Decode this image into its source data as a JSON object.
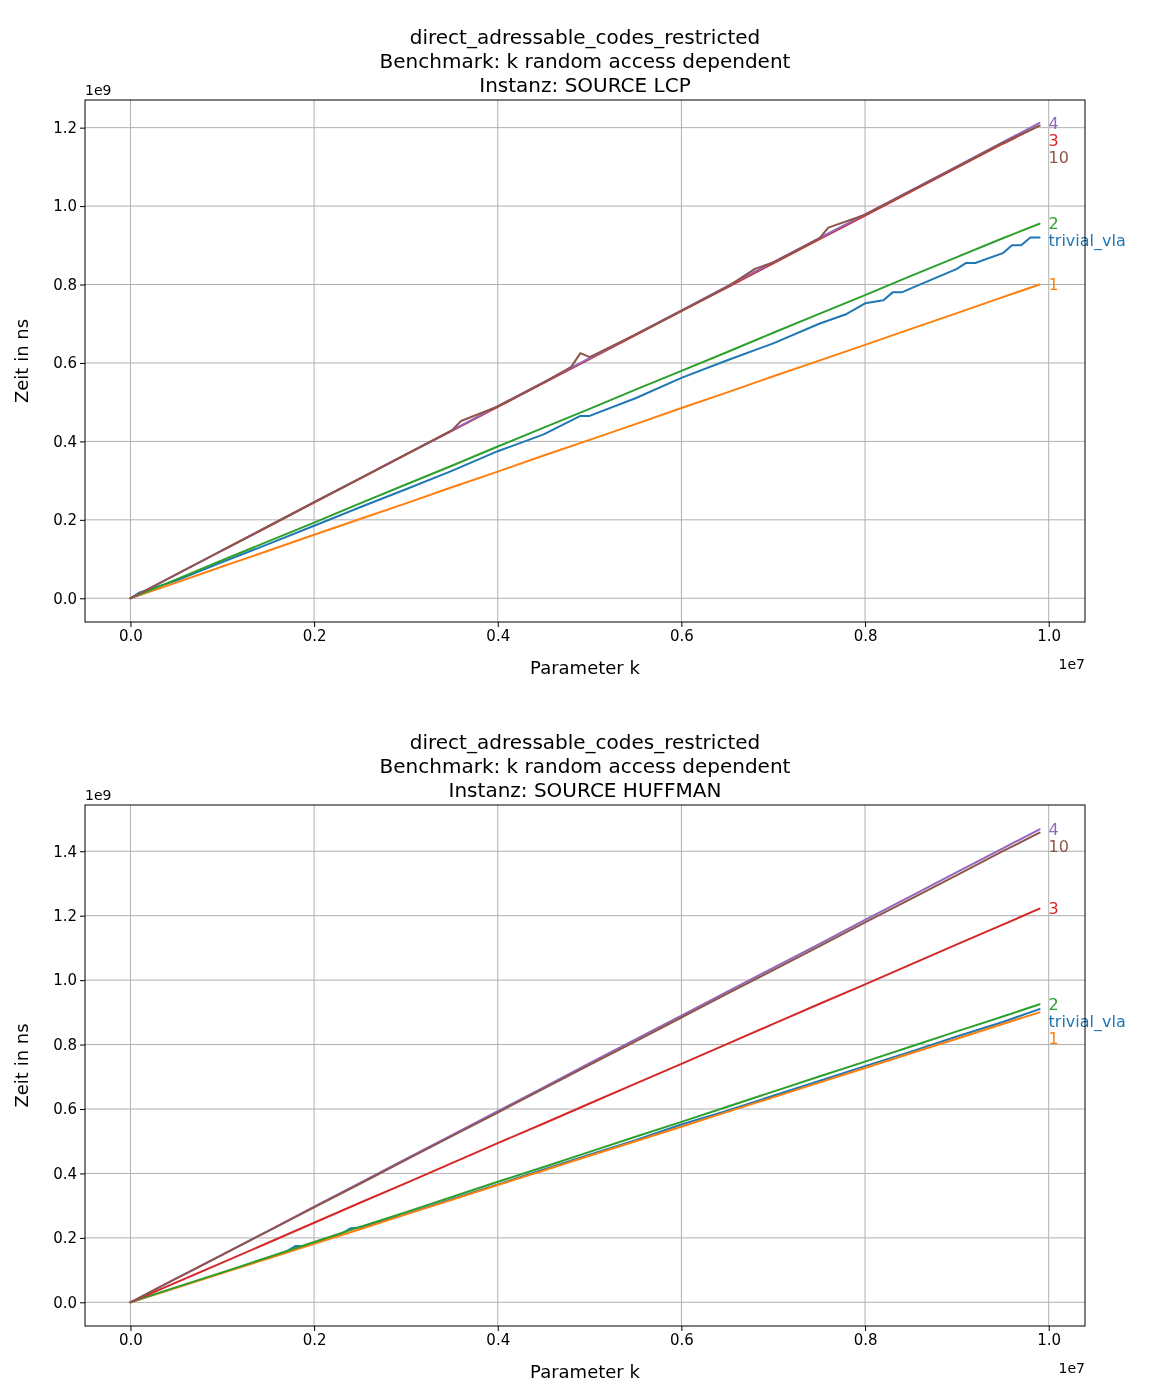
{
  "chart_data": [
    {
      "type": "line",
      "title": "direct_adressable_codes_restricted\nBenchmark: k random access dependent\nInstanz: SOURCE LCP",
      "xlabel": "Parameter k",
      "ylabel": "Zeit in ns",
      "annotations": [
        "1e9",
        "1e7"
      ],
      "grid": true,
      "xlim": [
        -0.0495,
        1.0395
      ],
      "ylim": [
        -0.0605,
        1.2705
      ],
      "xticks": [
        {
          "value": 0,
          "label": "0.0"
        },
        {
          "value": 0.2,
          "label": "0.2"
        },
        {
          "value": 0.4,
          "label": "0.4"
        },
        {
          "value": 0.6,
          "label": "0.6"
        },
        {
          "value": 0.8,
          "label": "0.8"
        },
        {
          "value": 1,
          "label": "1.0"
        }
      ],
      "yticks": [
        {
          "value": 0,
          "label": "0.0"
        },
        {
          "value": 0.2,
          "label": "0.2"
        },
        {
          "value": 0.4,
          "label": "0.4"
        },
        {
          "value": 0.6,
          "label": "0.6"
        },
        {
          "value": 0.8,
          "label": "0.8"
        },
        {
          "value": 1,
          "label": "1.0"
        },
        {
          "value": 1.2,
          "label": "1.2"
        }
      ],
      "x": [
        0,
        0.05,
        0.1,
        0.15,
        0.2,
        0.25,
        0.3,
        0.35,
        0.4,
        0.45,
        0.5,
        0.55,
        0.6,
        0.65,
        0.7,
        0.75,
        0.8,
        0.85,
        0.9,
        0.95,
        0.99
      ],
      "series": [
        {
          "name": "trivial_vla",
          "color": "#1f77b4",
          "x": [
            0,
            0.01,
            0.05,
            0.1,
            0.15,
            0.2,
            0.25,
            0.3,
            0.35,
            0.4,
            0.45,
            0.49,
            0.5,
            0.55,
            0.6,
            0.65,
            0.7,
            0.75,
            0.78,
            0.8,
            0.82,
            0.83,
            0.84,
            0.85,
            0.9,
            0.91,
            0.92,
            0.95,
            0.96,
            0.97,
            0.98,
            0.99
          ],
          "values": [
            0,
            0.015,
            0.045,
            0.092,
            0.138,
            0.185,
            0.232,
            0.278,
            0.325,
            0.375,
            0.418,
            0.465,
            0.465,
            0.51,
            0.562,
            0.607,
            0.65,
            0.7,
            0.725,
            0.752,
            0.76,
            0.78,
            0.78,
            0.79,
            0.84,
            0.855,
            0.855,
            0.88,
            0.9,
            0.9,
            0.92,
            0.92
          ]
        },
        {
          "name": "1",
          "color": "#ff7f0e",
          "values": [
            0,
            0.04,
            0.081,
            0.121,
            0.162,
            0.202,
            0.242,
            0.283,
            0.323,
            0.364,
            0.404,
            0.444,
            0.485,
            0.525,
            0.566,
            0.606,
            0.646,
            0.687,
            0.727,
            0.768,
            0.8
          ]
        },
        {
          "name": "2",
          "color": "#2ca02c",
          "values": [
            0,
            0.048,
            0.097,
            0.145,
            0.193,
            0.242,
            0.29,
            0.338,
            0.387,
            0.435,
            0.483,
            0.532,
            0.58,
            0.628,
            0.677,
            0.725,
            0.773,
            0.822,
            0.87,
            0.918,
            0.955
          ]
        },
        {
          "name": "3",
          "color": "#d62728",
          "x": [
            0.1,
            0.15,
            0.2,
            0.25,
            0.3,
            0.35,
            0.4,
            0.45,
            0.5,
            0.55,
            0.6,
            0.65,
            0.7,
            0.75,
            0.8,
            0.85,
            0.9,
            0.95,
            0.99
          ],
          "values": [
            0.122,
            0.183,
            0.244,
            0.305,
            0.366,
            0.427,
            0.488,
            0.549,
            0.61,
            0.671,
            0.732,
            0.793,
            0.854,
            0.915,
            0.976,
            1.037,
            1.098,
            1.159,
            1.205
          ]
        },
        {
          "name": "4",
          "color": "#9467bd",
          "values": [
            0,
            0.061,
            0.122,
            0.184,
            0.245,
            0.306,
            0.367,
            0.428,
            0.49,
            0.551,
            0.612,
            0.673,
            0.734,
            0.796,
            0.857,
            0.918,
            0.979,
            1.04,
            1.101,
            1.163,
            1.212
          ]
        },
        {
          "name": "10",
          "color": "#8c564b",
          "x": [
            0,
            0.05,
            0.1,
            0.15,
            0.2,
            0.25,
            0.3,
            0.35,
            0.36,
            0.4,
            0.45,
            0.48,
            0.49,
            0.5,
            0.55,
            0.6,
            0.65,
            0.68,
            0.7,
            0.75,
            0.76,
            0.8,
            0.85,
            0.9,
            0.95,
            0.99
          ],
          "values": [
            0,
            0.061,
            0.122,
            0.183,
            0.245,
            0.306,
            0.367,
            0.428,
            0.452,
            0.489,
            0.55,
            0.59,
            0.625,
            0.615,
            0.672,
            0.733,
            0.794,
            0.84,
            0.856,
            0.917,
            0.945,
            0.978,
            1.039,
            1.1,
            1.161,
            1.205
          ]
        }
      ]
    },
    {
      "type": "line",
      "title": "direct_adressable_codes_restricted\nBenchmark: k random access dependent\nInstanz: SOURCE HUFFMAN",
      "xlabel": "Parameter k",
      "ylabel": "Zeit in ns",
      "annotations": [
        "1e9",
        "1e7"
      ],
      "grid": true,
      "xlim": [
        -0.0495,
        1.0395
      ],
      "ylim": [
        -0.0735,
        1.5435
      ],
      "xticks": [
        {
          "value": 0,
          "label": "0.0"
        },
        {
          "value": 0.2,
          "label": "0.2"
        },
        {
          "value": 0.4,
          "label": "0.4"
        },
        {
          "value": 0.6,
          "label": "0.6"
        },
        {
          "value": 0.8,
          "label": "0.8"
        },
        {
          "value": 1,
          "label": "1.0"
        }
      ],
      "yticks": [
        {
          "value": 0,
          "label": "0.0"
        },
        {
          "value": 0.2,
          "label": "0.2"
        },
        {
          "value": 0.4,
          "label": "0.4"
        },
        {
          "value": 0.6,
          "label": "0.6"
        },
        {
          "value": 0.8,
          "label": "0.8"
        },
        {
          "value": 1,
          "label": "1.0"
        },
        {
          "value": 1.2,
          "label": "1.2"
        },
        {
          "value": 1.4,
          "label": "1.4"
        }
      ],
      "x": [
        0,
        0.05,
        0.1,
        0.15,
        0.2,
        0.25,
        0.3,
        0.35,
        0.4,
        0.45,
        0.5,
        0.55,
        0.6,
        0.65,
        0.7,
        0.75,
        0.8,
        0.85,
        0.9,
        0.95,
        0.99
      ],
      "series": [
        {
          "name": "trivial_vla",
          "color": "#1f77b4",
          "x": [
            0.17,
            0.18,
            0.19,
            0.2,
            0.23,
            0.24,
            0.25,
            0.3,
            0.35,
            0.4,
            0.45,
            0.5,
            0.55,
            0.6,
            0.65,
            0.7,
            0.75,
            0.8,
            0.85,
            0.9,
            0.95,
            0.99
          ],
          "values": [
            0.158,
            0.175,
            0.175,
            0.185,
            0.213,
            0.23,
            0.232,
            0.274,
            0.32,
            0.366,
            0.412,
            0.458,
            0.503,
            0.552,
            0.595,
            0.641,
            0.687,
            0.733,
            0.778,
            0.825,
            0.87,
            0.91
          ]
        },
        {
          "name": "1",
          "color": "#ff7f0e",
          "values": [
            0,
            0.045,
            0.091,
            0.136,
            0.182,
            0.227,
            0.273,
            0.318,
            0.364,
            0.409,
            0.455,
            0.5,
            0.545,
            0.591,
            0.636,
            0.682,
            0.727,
            0.773,
            0.818,
            0.864,
            0.9
          ]
        },
        {
          "name": "2",
          "color": "#2ca02c",
          "values": [
            0,
            0.047,
            0.093,
            0.14,
            0.187,
            0.234,
            0.28,
            0.327,
            0.374,
            0.42,
            0.467,
            0.514,
            0.56,
            0.607,
            0.654,
            0.701,
            0.747,
            0.794,
            0.841,
            0.887,
            0.925
          ]
        },
        {
          "name": "3",
          "color": "#d62728",
          "values": [
            0,
            0.062,
            0.123,
            0.185,
            0.247,
            0.309,
            0.37,
            0.432,
            0.494,
            0.555,
            0.617,
            0.679,
            0.74,
            0.802,
            0.864,
            0.926,
            0.987,
            1.049,
            1.111,
            1.172,
            1.222
          ]
        },
        {
          "name": "4",
          "color": "#9467bd",
          "values": [
            0,
            0.074,
            0.148,
            0.222,
            0.297,
            0.371,
            0.445,
            0.519,
            0.593,
            0.667,
            0.742,
            0.816,
            0.89,
            0.964,
            1.038,
            1.112,
            1.187,
            1.261,
            1.335,
            1.409,
            1.468
          ]
        },
        {
          "name": "10",
          "color": "#8c564b",
          "values": [
            0,
            0.074,
            0.147,
            0.221,
            0.295,
            0.368,
            0.442,
            0.516,
            0.589,
            0.663,
            0.737,
            0.81,
            0.884,
            0.958,
            1.031,
            1.105,
            1.179,
            1.252,
            1.326,
            1.4,
            1.458
          ]
        }
      ]
    }
  ]
}
